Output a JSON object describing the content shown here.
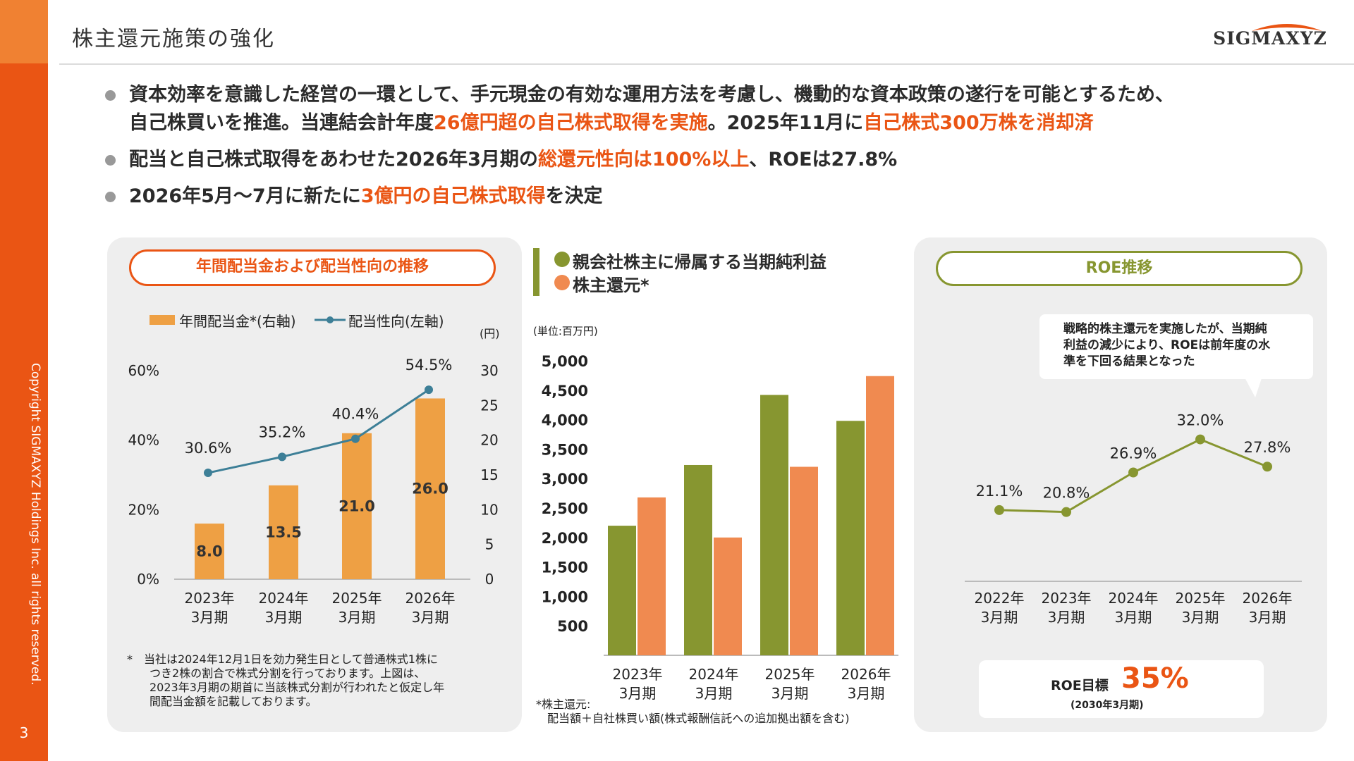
{
  "page": {
    "title": "株主還元施策の強化",
    "logo": "SIGMAXYZ",
    "copyright": "Copyright SIGMAXYZ Holdings Inc. all rights reserved.",
    "page_number": "3"
  },
  "colors": {
    "orange": "#ea5514",
    "bar_orange": "#eea044",
    "line_teal": "#3d7f97",
    "olive": "#879630",
    "salmon": "#f08a50"
  },
  "bullets": [
    {
      "line1": "資本効率を意識した経営の一環として、手元現金の有効な運用方法を考慮し、機動的な資本政策の遂行を可能とするため、",
      "l2_a": "自己株買いを推進。当連結会計年度",
      "l2_hl1": "26億円超の自己株式取得を実施",
      "l2_b": "。2025年11月に",
      "l2_hl2": "自己株式300万株を消却済"
    },
    {
      "a": "配当と自己株式取得をあわせた2026年3月期の",
      "hl": "総還元性向は100%以上",
      "b": "、ROEは27.8%"
    },
    {
      "a": "2026年5月～7月に新たに",
      "hl": "3億円の自己株式取得",
      "b": "を決定"
    }
  ],
  "panel1": {
    "heading": "年間配当金および配当性向の推移",
    "legend_bar": "年間配当金*(右軸)",
    "legend_line": "配当性向(左軸)",
    "right_unit": "(円)",
    "note": [
      "*　当社は2024年12月1日を効力発生日として普通株式1株に",
      "　　つき2株の割合で株式分割を行っております。上図は、",
      "　　2023年3月期の期首に当該株式分割が行われたと仮定し年",
      "　　間配当金額を記載しております。"
    ]
  },
  "panel2": {
    "legend1": "親会社株主に帰属する当期純利益",
    "legend2": "株主還元*",
    "unit": "(単位:百万円)",
    "note": [
      "*株主還元:",
      "　配当額＋自社株買い額(株式報酬信託への追加拠出額を含む)"
    ]
  },
  "panel3": {
    "heading": "ROE推移",
    "callout": [
      "戦略的株主還元を実施したが、当期純",
      "利益の減少により、ROEは前年度の水",
      "準を下回る結果となった"
    ],
    "target_label": "ROE目標",
    "target_value": "35%",
    "target_sub": "(2030年3月期)"
  },
  "chart_data": [
    {
      "type": "bar",
      "categories": [
        [
          "2023年",
          "3月期"
        ],
        [
          "2024年",
          "3月期"
        ],
        [
          "2025年",
          "3月期"
        ],
        [
          "2026年",
          "3月期"
        ]
      ],
      "series": [
        {
          "name": "年間配当金*(右軸)",
          "values": [
            8.0,
            13.5,
            21.0,
            26.0
          ],
          "labels": [
            "8.0",
            "13.5",
            "21.0",
            "26.0"
          ],
          "axis": "right"
        },
        {
          "name": "配当性向(左軸)",
          "type": "line",
          "values": [
            30.6,
            35.2,
            40.4,
            54.5
          ],
          "labels": [
            "30.6%",
            "35.2%",
            "40.4%",
            "54.5%"
          ],
          "axis": "left"
        }
      ],
      "ylim_left": [
        0,
        60
      ],
      "yticks_left": [
        "0%",
        "20%",
        "40%",
        "60%"
      ],
      "ylim_right": [
        0,
        30
      ],
      "yticks_right": [
        "0",
        "5",
        "10",
        "15",
        "20",
        "25",
        "30"
      ]
    },
    {
      "type": "bar",
      "categories": [
        [
          "2023年",
          "3月期"
        ],
        [
          "2024年",
          "3月期"
        ],
        [
          "2025年",
          "3月期"
        ],
        [
          "2026年",
          "3月期"
        ]
      ],
      "series": [
        {
          "name": "親会社株主に帰属する当期純利益",
          "values": [
            2200,
            3230,
            4420,
            3980
          ]
        },
        {
          "name": "株主還元*",
          "values": [
            2680,
            2000,
            3200,
            4740
          ]
        }
      ],
      "ylim": [
        0,
        5000
      ],
      "yticks": [
        "500",
        "1,000",
        "1,500",
        "2,000",
        "2,500",
        "3,000",
        "3,500",
        "4,000",
        "4,500",
        "5,000"
      ]
    },
    {
      "type": "line",
      "categories": [
        [
          "2022年",
          "3月期"
        ],
        [
          "2023年",
          "3月期"
        ],
        [
          "2024年",
          "3月期"
        ],
        [
          "2025年",
          "3月期"
        ],
        [
          "2026年",
          "3月期"
        ]
      ],
      "series": [
        {
          "values": [
            21.1,
            20.8,
            26.9,
            32.0,
            27.8
          ],
          "labels": [
            "21.1%",
            "20.8%",
            "26.9%",
            "32.0%",
            "27.8%"
          ]
        }
      ]
    }
  ]
}
